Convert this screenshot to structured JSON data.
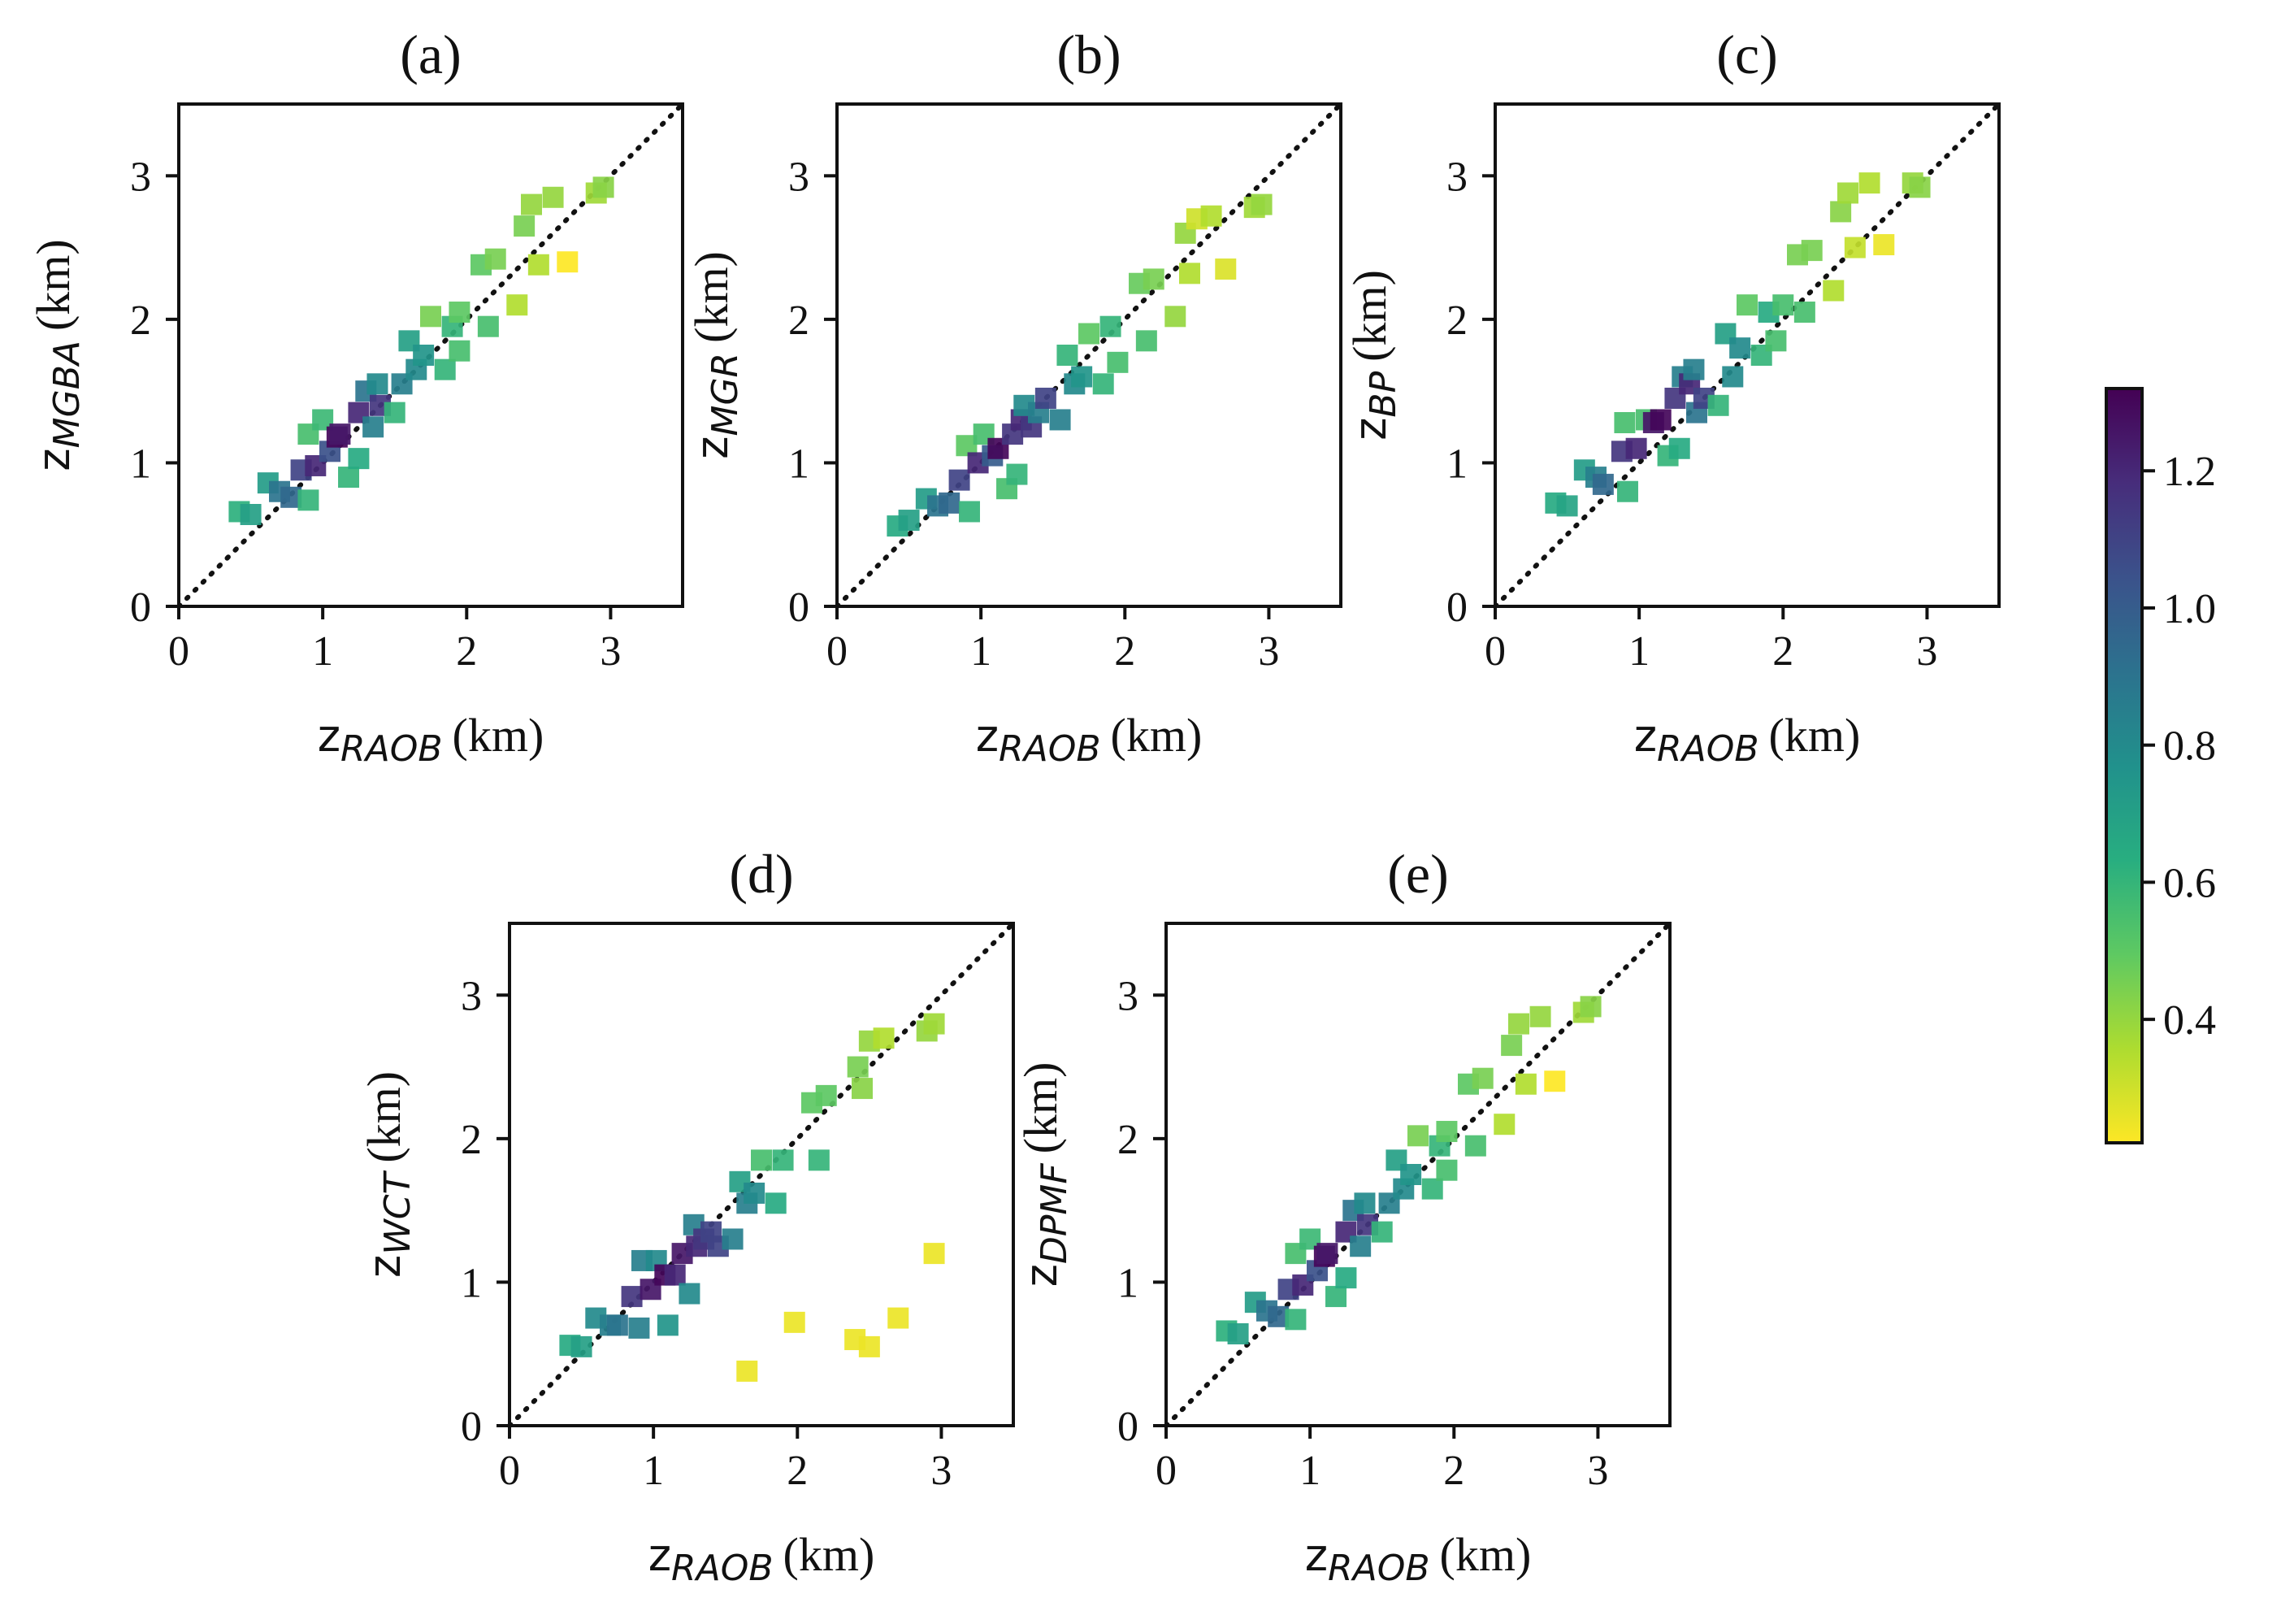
{
  "figure_ylabel_prefix": "z",
  "xlabel": {
    "var": "z",
    "sub": "RAOB",
    "unit": "(km)"
  },
  "colorbar": {
    "ticks": [
      0.4,
      0.6,
      0.8,
      1.0,
      1.2
    ],
    "tick_labels": [
      "0.4",
      "0.6",
      "0.8",
      "1.0",
      "1.2"
    ],
    "range": [
      0.22,
      1.32
    ],
    "colors": [
      "#fde725",
      "#addc30",
      "#5ec962",
      "#28ae80",
      "#21918c",
      "#2c728e",
      "#3b528b",
      "#472d7b",
      "#440154"
    ]
  },
  "chart_data": [
    {
      "type": "scatter",
      "title": "(a)",
      "xlabel": "z_RAOB (km)",
      "ylabel": "z_MGBA (km)",
      "ysub": "MGBA",
      "xlim": [
        0,
        3.5
      ],
      "ylim": [
        0,
        3.5
      ],
      "xticks": [
        "0",
        "1",
        "2",
        "3"
      ],
      "yticks": [
        "0",
        "1",
        "2",
        "3"
      ],
      "reference_line": "1:1 dotted",
      "points": [
        [
          0.42,
          0.66,
          0.62
        ],
        [
          0.5,
          0.64,
          0.7
        ],
        [
          0.62,
          0.86,
          0.72
        ],
        [
          0.7,
          0.8,
          0.9
        ],
        [
          0.78,
          0.76,
          0.95
        ],
        [
          0.85,
          0.95,
          1.1
        ],
        [
          0.9,
          1.2,
          0.55
        ],
        [
          0.9,
          0.74,
          0.6
        ],
        [
          0.95,
          0.98,
          1.2
        ],
        [
          1.0,
          1.3,
          0.58
        ],
        [
          1.05,
          1.08,
          1.05
        ],
        [
          1.1,
          1.18,
          1.3
        ],
        [
          1.12,
          1.2,
          1.25
        ],
        [
          1.18,
          0.9,
          0.6
        ],
        [
          1.25,
          1.03,
          0.65
        ],
        [
          1.25,
          1.35,
          1.2
        ],
        [
          1.3,
          1.5,
          0.9
        ],
        [
          1.35,
          1.25,
          0.85
        ],
        [
          1.38,
          1.55,
          0.8
        ],
        [
          1.4,
          1.4,
          1.15
        ],
        [
          1.5,
          1.35,
          0.6
        ],
        [
          1.55,
          1.55,
          0.85
        ],
        [
          1.6,
          1.85,
          0.7
        ],
        [
          1.65,
          1.65,
          0.8
        ],
        [
          1.7,
          1.75,
          0.75
        ],
        [
          1.75,
          2.02,
          0.45
        ],
        [
          1.85,
          1.65,
          0.6
        ],
        [
          1.9,
          1.95,
          0.6
        ],
        [
          1.95,
          1.78,
          0.55
        ],
        [
          1.95,
          2.05,
          0.5
        ],
        [
          2.1,
          2.38,
          0.5
        ],
        [
          2.15,
          1.95,
          0.55
        ],
        [
          2.2,
          2.42,
          0.45
        ],
        [
          2.35,
          2.1,
          0.35
        ],
        [
          2.4,
          2.65,
          0.45
        ],
        [
          2.45,
          2.8,
          0.4
        ],
        [
          2.5,
          2.38,
          0.35
        ],
        [
          2.6,
          2.85,
          0.4
        ],
        [
          2.7,
          2.4,
          0.22
        ],
        [
          2.9,
          2.88,
          0.38
        ],
        [
          2.95,
          2.92,
          0.42
        ]
      ]
    },
    {
      "type": "scatter",
      "title": "(b)",
      "xlabel": "z_RAOB (km)",
      "ylabel": "z_MGR (km)",
      "ysub": "MGR",
      "xlim": [
        0,
        3.5
      ],
      "ylim": [
        0,
        3.5
      ],
      "xticks": [
        "0",
        "1",
        "2",
        "3"
      ],
      "yticks": [
        "0",
        "1",
        "2",
        "3"
      ],
      "reference_line": "1:1 dotted",
      "points": [
        [
          0.42,
          0.56,
          0.65
        ],
        [
          0.5,
          0.6,
          0.7
        ],
        [
          0.62,
          0.75,
          0.72
        ],
        [
          0.7,
          0.7,
          0.9
        ],
        [
          0.78,
          0.72,
          0.95
        ],
        [
          0.85,
          0.88,
          1.1
        ],
        [
          0.9,
          1.12,
          0.5
        ],
        [
          0.92,
          0.66,
          0.6
        ],
        [
          0.98,
          1.0,
          1.2
        ],
        [
          1.02,
          1.2,
          0.55
        ],
        [
          1.08,
          1.05,
          1.0
        ],
        [
          1.12,
          1.1,
          1.3
        ],
        [
          1.18,
          0.82,
          0.55
        ],
        [
          1.22,
          1.2,
          1.15
        ],
        [
          1.25,
          0.92,
          0.6
        ],
        [
          1.28,
          1.3,
          1.2
        ],
        [
          1.3,
          1.4,
          0.8
        ],
        [
          1.35,
          1.25,
          1.15
        ],
        [
          1.4,
          1.35,
          0.85
        ],
        [
          1.45,
          1.45,
          1.1
        ],
        [
          1.55,
          1.3,
          0.85
        ],
        [
          1.6,
          1.75,
          0.6
        ],
        [
          1.65,
          1.55,
          0.8
        ],
        [
          1.7,
          1.6,
          0.75
        ],
        [
          1.75,
          1.9,
          0.5
        ],
        [
          1.85,
          1.55,
          0.6
        ],
        [
          1.9,
          1.95,
          0.6
        ],
        [
          1.95,
          1.7,
          0.55
        ],
        [
          2.1,
          2.25,
          0.48
        ],
        [
          2.15,
          1.85,
          0.55
        ],
        [
          2.2,
          2.28,
          0.45
        ],
        [
          2.35,
          2.02,
          0.4
        ],
        [
          2.42,
          2.6,
          0.4
        ],
        [
          2.45,
          2.32,
          0.35
        ],
        [
          2.5,
          2.7,
          0.3
        ],
        [
          2.6,
          2.72,
          0.35
        ],
        [
          2.7,
          2.35,
          0.28
        ],
        [
          2.9,
          2.78,
          0.38
        ],
        [
          2.95,
          2.8,
          0.4
        ]
      ]
    },
    {
      "type": "scatter",
      "title": "(c)",
      "xlabel": "z_RAOB (km)",
      "ylabel": "z_BP (km)",
      "ysub": "BP",
      "xlim": [
        0,
        3.5
      ],
      "ylim": [
        0,
        3.5
      ],
      "xticks": [
        "0",
        "1",
        "2",
        "3"
      ],
      "yticks": [
        "0",
        "1",
        "2",
        "3"
      ],
      "reference_line": "1:1 dotted",
      "points": [
        [
          0.42,
          0.72,
          0.65
        ],
        [
          0.5,
          0.7,
          0.68
        ],
        [
          0.62,
          0.95,
          0.72
        ],
        [
          0.7,
          0.9,
          0.85
        ],
        [
          0.75,
          0.85,
          0.95
        ],
        [
          0.88,
          1.08,
          1.15
        ],
        [
          0.9,
          1.28,
          0.55
        ],
        [
          0.92,
          0.8,
          0.6
        ],
        [
          0.98,
          1.1,
          1.2
        ],
        [
          1.05,
          1.3,
          0.55
        ],
        [
          1.1,
          1.28,
          1.25
        ],
        [
          1.15,
          1.3,
          1.3
        ],
        [
          1.2,
          1.05,
          0.6
        ],
        [
          1.25,
          1.45,
          1.15
        ],
        [
          1.28,
          1.1,
          0.65
        ],
        [
          1.3,
          1.6,
          0.85
        ],
        [
          1.35,
          1.55,
          1.2
        ],
        [
          1.38,
          1.65,
          0.85
        ],
        [
          1.4,
          1.35,
          0.9
        ],
        [
          1.45,
          1.45,
          1.1
        ],
        [
          1.55,
          1.4,
          0.6
        ],
        [
          1.6,
          1.9,
          0.7
        ],
        [
          1.65,
          1.6,
          0.8
        ],
        [
          1.7,
          1.8,
          0.8
        ],
        [
          1.75,
          2.1,
          0.5
        ],
        [
          1.85,
          1.75,
          0.6
        ],
        [
          1.9,
          2.05,
          0.65
        ],
        [
          1.95,
          1.85,
          0.55
        ],
        [
          2.0,
          2.1,
          0.55
        ],
        [
          2.1,
          2.45,
          0.45
        ],
        [
          2.15,
          2.05,
          0.55
        ],
        [
          2.2,
          2.48,
          0.45
        ],
        [
          2.35,
          2.2,
          0.35
        ],
        [
          2.4,
          2.75,
          0.42
        ],
        [
          2.45,
          2.88,
          0.38
        ],
        [
          2.5,
          2.5,
          0.32
        ],
        [
          2.6,
          2.95,
          0.35
        ],
        [
          2.7,
          2.52,
          0.25
        ],
        [
          2.9,
          2.95,
          0.4
        ],
        [
          2.95,
          2.92,
          0.42
        ]
      ]
    },
    {
      "type": "scatter",
      "title": "(d)",
      "xlabel": "z_RAOB (km)",
      "ylabel": "z_WCT (km)",
      "ysub": "WCT",
      "xlim": [
        0,
        3.5
      ],
      "ylim": [
        0,
        3.5
      ],
      "xticks": [
        "0",
        "1",
        "2",
        "3"
      ],
      "yticks": [
        "0",
        "1",
        "2",
        "3"
      ],
      "reference_line": "1:1 dotted",
      "points": [
        [
          0.42,
          0.56,
          0.65
        ],
        [
          0.5,
          0.55,
          0.7
        ],
        [
          0.6,
          0.75,
          0.8
        ],
        [
          0.7,
          0.7,
          0.85
        ],
        [
          0.75,
          0.7,
          0.9
        ],
        [
          0.85,
          0.9,
          1.15
        ],
        [
          0.9,
          0.68,
          0.85
        ],
        [
          0.92,
          1.15,
          0.85
        ],
        [
          0.98,
          0.95,
          1.25
        ],
        [
          1.02,
          1.15,
          0.8
        ],
        [
          1.08,
          1.05,
          1.3
        ],
        [
          1.1,
          0.7,
          0.75
        ],
        [
          1.15,
          1.05,
          1.2
        ],
        [
          1.2,
          1.2,
          1.25
        ],
        [
          1.25,
          0.92,
          0.8
        ],
        [
          1.28,
          1.4,
          0.85
        ],
        [
          1.3,
          1.25,
          1.2
        ],
        [
          1.35,
          1.3,
          1.15
        ],
        [
          1.4,
          1.35,
          1.1
        ],
        [
          1.45,
          1.25,
          1.1
        ],
        [
          1.55,
          1.3,
          0.85
        ],
        [
          1.6,
          1.7,
          0.7
        ],
        [
          1.65,
          1.55,
          0.85
        ],
        [
          1.65,
          0.38,
          0.25
        ],
        [
          1.7,
          1.62,
          0.8
        ],
        [
          1.75,
          1.85,
          0.55
        ],
        [
          1.85,
          1.55,
          0.65
        ],
        [
          1.9,
          1.85,
          0.6
        ],
        [
          1.98,
          0.72,
          0.25
        ],
        [
          2.1,
          2.25,
          0.5
        ],
        [
          2.15,
          1.85,
          0.6
        ],
        [
          2.2,
          2.3,
          0.5
        ],
        [
          2.4,
          0.6,
          0.25
        ],
        [
          2.42,
          2.5,
          0.45
        ],
        [
          2.45,
          2.35,
          0.42
        ],
        [
          2.5,
          0.55,
          0.25
        ],
        [
          2.5,
          2.68,
          0.4
        ],
        [
          2.6,
          2.7,
          0.35
        ],
        [
          2.7,
          0.75,
          0.25
        ],
        [
          2.9,
          2.75,
          0.4
        ],
        [
          2.95,
          1.2,
          0.25
        ],
        [
          2.95,
          2.8,
          0.38
        ]
      ]
    },
    {
      "type": "scatter",
      "title": "(e)",
      "xlabel": "z_RAOB (km)",
      "ylabel": "z_DPMF (km)",
      "ysub": "DPMF",
      "xlim": [
        0,
        3.5
      ],
      "ylim": [
        0,
        3.5
      ],
      "xticks": [
        "0",
        "1",
        "2",
        "3"
      ],
      "yticks": [
        "0",
        "1",
        "2",
        "3"
      ],
      "reference_line": "1:1 dotted",
      "points": [
        [
          0.42,
          0.66,
          0.62
        ],
        [
          0.5,
          0.64,
          0.7
        ],
        [
          0.62,
          0.86,
          0.72
        ],
        [
          0.7,
          0.8,
          0.9
        ],
        [
          0.78,
          0.76,
          0.95
        ],
        [
          0.85,
          0.95,
          1.1
        ],
        [
          0.9,
          1.2,
          0.55
        ],
        [
          0.9,
          0.74,
          0.6
        ],
        [
          0.95,
          0.98,
          1.2
        ],
        [
          1.0,
          1.3,
          0.58
        ],
        [
          1.05,
          1.08,
          1.05
        ],
        [
          1.1,
          1.18,
          1.3
        ],
        [
          1.12,
          1.2,
          1.25
        ],
        [
          1.18,
          0.9,
          0.6
        ],
        [
          1.25,
          1.03,
          0.65
        ],
        [
          1.25,
          1.35,
          1.2
        ],
        [
          1.3,
          1.5,
          0.9
        ],
        [
          1.35,
          1.25,
          0.85
        ],
        [
          1.38,
          1.55,
          0.8
        ],
        [
          1.4,
          1.4,
          1.15
        ],
        [
          1.5,
          1.35,
          0.6
        ],
        [
          1.55,
          1.55,
          0.85
        ],
        [
          1.6,
          1.85,
          0.7
        ],
        [
          1.65,
          1.65,
          0.8
        ],
        [
          1.7,
          1.75,
          0.75
        ],
        [
          1.75,
          2.02,
          0.45
        ],
        [
          1.85,
          1.65,
          0.6
        ],
        [
          1.9,
          1.95,
          0.6
        ],
        [
          1.95,
          1.78,
          0.55
        ],
        [
          1.95,
          2.05,
          0.5
        ],
        [
          2.1,
          2.38,
          0.5
        ],
        [
          2.15,
          1.95,
          0.55
        ],
        [
          2.2,
          2.42,
          0.45
        ],
        [
          2.35,
          2.1,
          0.35
        ],
        [
          2.4,
          2.65,
          0.45
        ],
        [
          2.45,
          2.8,
          0.4
        ],
        [
          2.5,
          2.38,
          0.35
        ],
        [
          2.6,
          2.85,
          0.4
        ],
        [
          2.7,
          2.4,
          0.22
        ],
        [
          2.9,
          2.88,
          0.38
        ],
        [
          2.95,
          2.92,
          0.42
        ]
      ]
    }
  ]
}
